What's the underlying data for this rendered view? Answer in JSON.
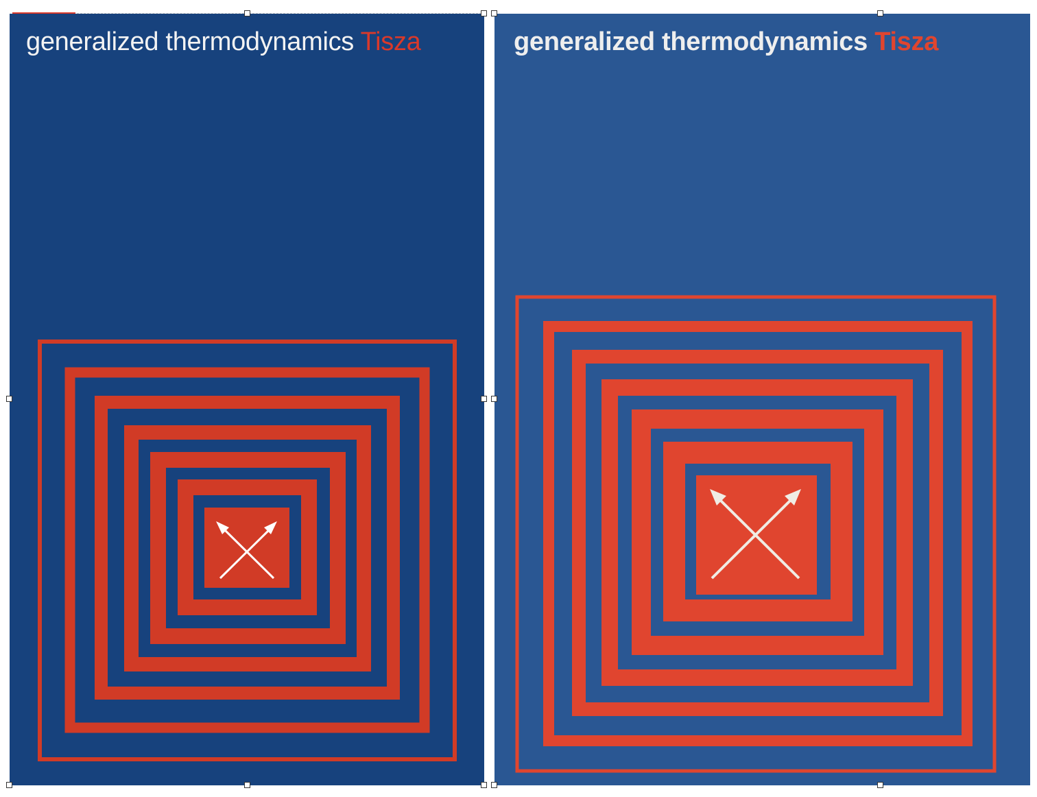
{
  "covers": [
    {
      "title_main": "generalized thermodynamics",
      "title_author": "Tisza",
      "colors": {
        "background": "#17427d",
        "stripe": "#d13b26",
        "arrows": "#ffffff"
      },
      "design_icon": "crossed-arrows-icon"
    },
    {
      "title_main": "generalized thermodynamics",
      "title_author": "Tisza",
      "colors": {
        "background": "#2a5793",
        "stripe": "#e0452f",
        "arrows": "#f0ece4"
      },
      "design_icon": "crossed-arrows-icon"
    }
  ],
  "selection_handles": {
    "color": "#ffffff",
    "border": "#333333"
  }
}
